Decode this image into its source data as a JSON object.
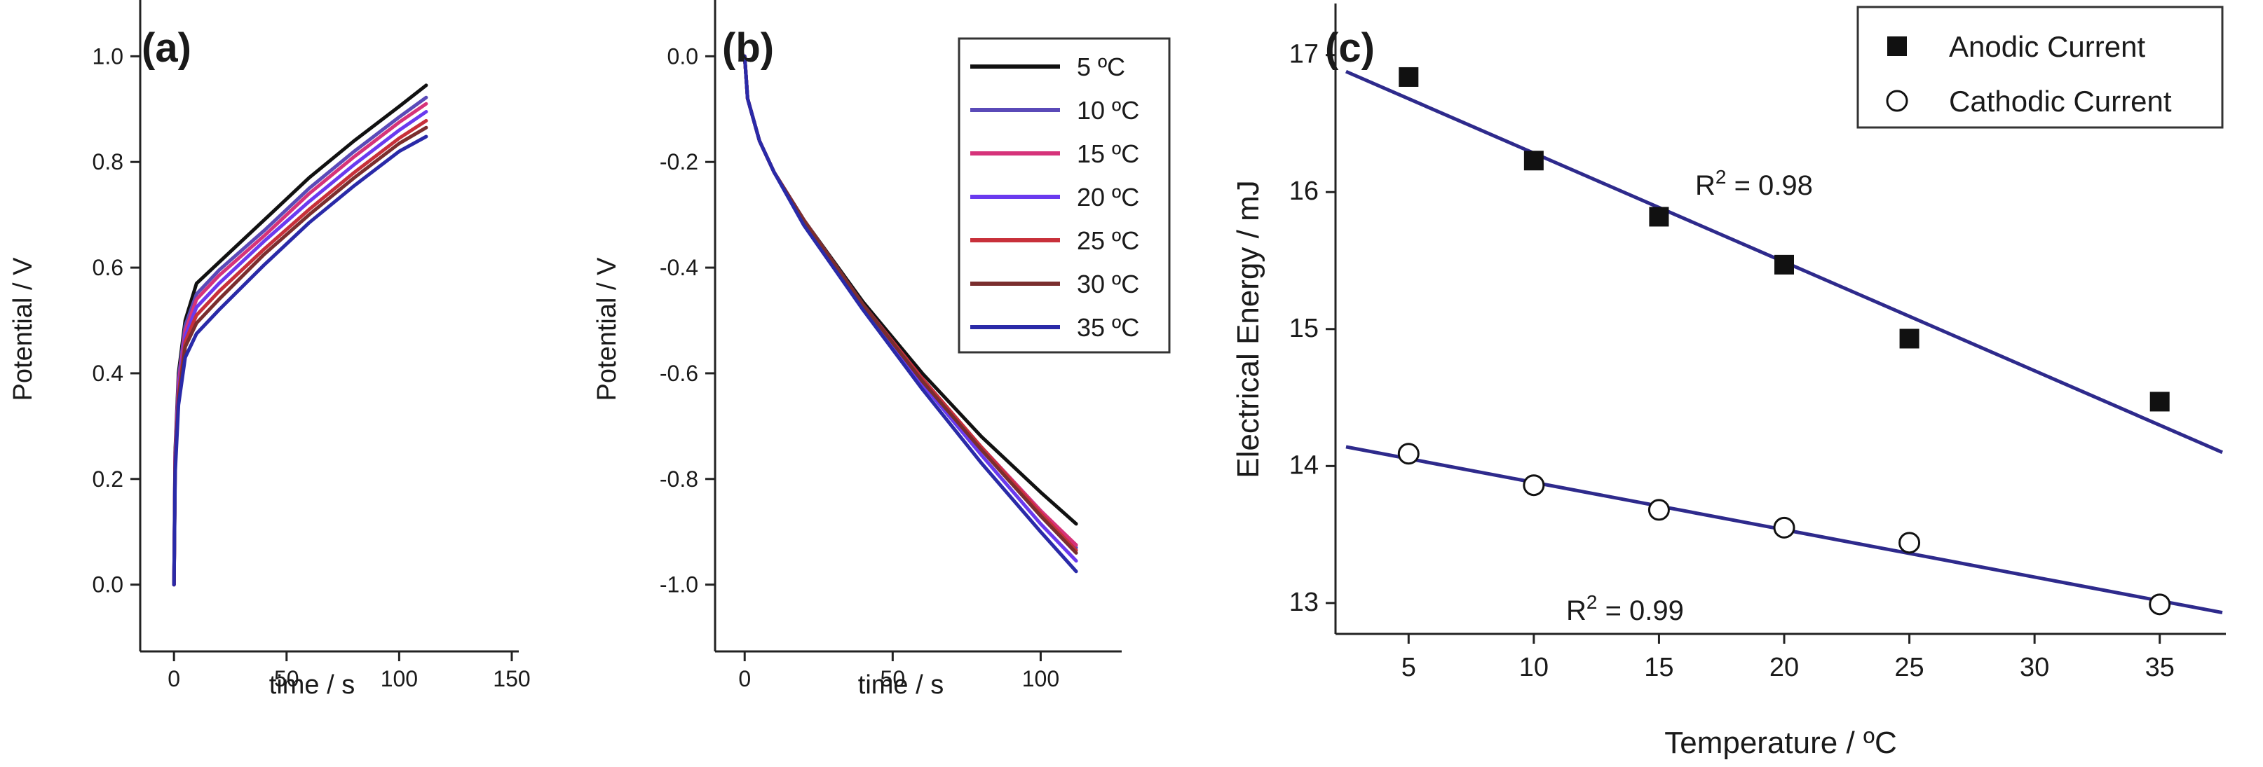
{
  "chart_data": [
    {
      "type": "line",
      "panel_label": "(a)",
      "xlabel": "time / s",
      "ylabel": "Potential / V",
      "xlim": [
        -15,
        150
      ],
      "ylim": [
        -0.08,
        1.08
      ],
      "x_ticks": [
        0,
        50,
        100,
        150
      ],
      "x_tick_labels": [
        "0",
        "50",
        "100",
        "150"
      ],
      "y_ticks": [
        0.0,
        0.2,
        0.4,
        0.6,
        0.8,
        1.0
      ],
      "y_tick_labels": [
        "0.0",
        "0.2",
        "0.4",
        "0.6",
        "0.8",
        "1.0"
      ],
      "series": [
        {
          "name": "5 ºC",
          "color": "#111111",
          "x": [
            0,
            0.5,
            2,
            5,
            10,
            20,
            40,
            60,
            80,
            100,
            112
          ],
          "values": [
            0.0,
            0.25,
            0.4,
            0.5,
            0.57,
            0.61,
            0.69,
            0.77,
            0.84,
            0.905,
            0.945
          ]
        },
        {
          "name": "10 ºC",
          "color": "#5a4ab8",
          "x": [
            0,
            0.5,
            2,
            5,
            10,
            20,
            40,
            60,
            80,
            100,
            112
          ],
          "values": [
            0.0,
            0.24,
            0.39,
            0.49,
            0.55,
            0.595,
            0.67,
            0.75,
            0.82,
            0.885,
            0.922
          ]
        },
        {
          "name": "15 ºC",
          "color": "#d6337a",
          "x": [
            0,
            0.5,
            2,
            5,
            10,
            20,
            40,
            60,
            80,
            100,
            112
          ],
          "values": [
            0.0,
            0.24,
            0.38,
            0.48,
            0.54,
            0.585,
            0.66,
            0.74,
            0.81,
            0.875,
            0.91
          ]
        },
        {
          "name": "20 ºC",
          "color": "#6a3aef",
          "x": [
            0,
            0.5,
            2,
            5,
            10,
            20,
            40,
            60,
            80,
            100,
            112
          ],
          "values": [
            0.0,
            0.23,
            0.37,
            0.47,
            0.525,
            0.57,
            0.65,
            0.725,
            0.795,
            0.86,
            0.895
          ]
        },
        {
          "name": "25 ºC",
          "color": "#c8303a",
          "x": [
            0,
            0.5,
            2,
            5,
            10,
            20,
            40,
            60,
            80,
            100,
            112
          ],
          "values": [
            0.0,
            0.22,
            0.36,
            0.46,
            0.51,
            0.555,
            0.635,
            0.71,
            0.78,
            0.845,
            0.878
          ]
        },
        {
          "name": "30 ºC",
          "color": "#7a2e2e",
          "x": [
            0,
            0.5,
            2,
            5,
            10,
            20,
            40,
            60,
            80,
            100,
            112
          ],
          "values": [
            0.0,
            0.22,
            0.35,
            0.45,
            0.495,
            0.54,
            0.625,
            0.7,
            0.77,
            0.835,
            0.865
          ]
        },
        {
          "name": "35 ºC",
          "color": "#2a2aa8",
          "x": [
            0,
            0.5,
            2,
            5,
            10,
            20,
            40,
            60,
            80,
            100,
            112
          ],
          "values": [
            0.0,
            0.21,
            0.34,
            0.43,
            0.475,
            0.52,
            0.605,
            0.685,
            0.755,
            0.82,
            0.848
          ]
        }
      ]
    },
    {
      "type": "line",
      "panel_label": "(b)",
      "xlabel": "time / s",
      "ylabel": "Potential / V",
      "xlim": [
        -10,
        125
      ],
      "ylim": [
        -1.08,
        0.08
      ],
      "x_ticks": [
        0,
        50,
        100
      ],
      "x_tick_labels": [
        "0",
        "50",
        "100"
      ],
      "y_ticks": [
        0.0,
        -0.2,
        -0.4,
        -0.6,
        -0.8,
        -1.0
      ],
      "y_tick_labels": [
        "0.0",
        "-0.2",
        "-0.4",
        "-0.6",
        "-0.8",
        "-1.0"
      ],
      "legend_position": "top-right",
      "series": [
        {
          "name": "5 ºC",
          "color": "#111111",
          "x": [
            0,
            1,
            5,
            10,
            20,
            40,
            60,
            80,
            100,
            112
          ],
          "values": [
            0.0,
            -0.08,
            -0.16,
            -0.22,
            -0.31,
            -0.465,
            -0.6,
            -0.72,
            -0.825,
            -0.885
          ]
        },
        {
          "name": "10 ºC",
          "color": "#5a4ab8",
          "x": [
            0,
            1,
            5,
            10,
            20,
            40,
            60,
            80,
            100,
            112
          ],
          "values": [
            0.0,
            -0.08,
            -0.16,
            -0.22,
            -0.31,
            -0.47,
            -0.61,
            -0.74,
            -0.86,
            -0.93
          ]
        },
        {
          "name": "15 ºC",
          "color": "#d6337a",
          "x": [
            0,
            1,
            5,
            10,
            20,
            40,
            60,
            80,
            100,
            112
          ],
          "values": [
            0.0,
            -0.08,
            -0.16,
            -0.22,
            -0.31,
            -0.47,
            -0.61,
            -0.74,
            -0.86,
            -0.925
          ]
        },
        {
          "name": "20 ºC",
          "color": "#6a3aef",
          "x": [
            0,
            1,
            5,
            10,
            20,
            40,
            60,
            80,
            100,
            112
          ],
          "values": [
            0.0,
            -0.08,
            -0.16,
            -0.22,
            -0.31,
            -0.475,
            -0.62,
            -0.755,
            -0.885,
            -0.955
          ]
        },
        {
          "name": "25 ºC",
          "color": "#c8303a",
          "x": [
            0,
            1,
            5,
            10,
            20,
            40,
            60,
            80,
            100,
            112
          ],
          "values": [
            0.0,
            -0.08,
            -0.16,
            -0.22,
            -0.31,
            -0.47,
            -0.61,
            -0.74,
            -0.865,
            -0.935
          ]
        },
        {
          "name": "30 ºC",
          "color": "#7a2e2e",
          "x": [
            0,
            1,
            5,
            10,
            20,
            40,
            60,
            80,
            100,
            112
          ],
          "values": [
            0.0,
            -0.08,
            -0.16,
            -0.22,
            -0.31,
            -0.47,
            -0.615,
            -0.745,
            -0.87,
            -0.94
          ]
        },
        {
          "name": "35 ºC",
          "color": "#2a2aa8",
          "x": [
            0,
            1,
            5,
            10,
            20,
            40,
            60,
            80,
            100,
            112
          ],
          "values": [
            0.0,
            -0.08,
            -0.16,
            -0.22,
            -0.32,
            -0.48,
            -0.63,
            -0.77,
            -0.9,
            -0.975
          ]
        }
      ]
    },
    {
      "type": "scatter",
      "panel_label": "(c)",
      "xlabel": "Temperature / ºC",
      "ylabel": "Electrical Energy / mJ",
      "xlim": [
        2.5,
        37.5
      ],
      "ylim": [
        12.8,
        17.3
      ],
      "x_ticks": [
        5,
        10,
        15,
        20,
        25,
        30,
        35
      ],
      "x_tick_labels": [
        "5",
        "10",
        "15",
        "20",
        "25",
        "30",
        "35"
      ],
      "y_ticks": [
        13,
        14,
        15,
        16,
        17
      ],
      "y_tick_labels": [
        "13",
        "14",
        "15",
        "16",
        "17"
      ],
      "legend_position": "top-right",
      "fit_color": "#2e2a8c",
      "series": [
        {
          "name": "Anodic Current",
          "marker": "filled-square",
          "x": [
            5,
            10,
            15,
            20,
            25,
            35
          ],
          "values": [
            16.84,
            16.23,
            15.82,
            15.47,
            14.93,
            14.47
          ],
          "fit": {
            "x": [
              2.5,
              37.5
            ],
            "y": [
              16.88,
              14.1
            ]
          },
          "r_squared_prefix": "R",
          "r_squared_suffix": " = 0.98"
        },
        {
          "name": "Cathodic Current",
          "marker": "open-circle",
          "x": [
            5,
            10,
            15,
            20,
            25,
            35
          ],
          "values": [
            14.09,
            13.86,
            13.68,
            13.55,
            13.44,
            12.99
          ],
          "fit": {
            "x": [
              2.5,
              37.5
            ],
            "y": [
              14.14,
              12.93
            ]
          },
          "r_squared_prefix": "R",
          "r_squared_suffix": " = 0.99"
        }
      ]
    }
  ]
}
